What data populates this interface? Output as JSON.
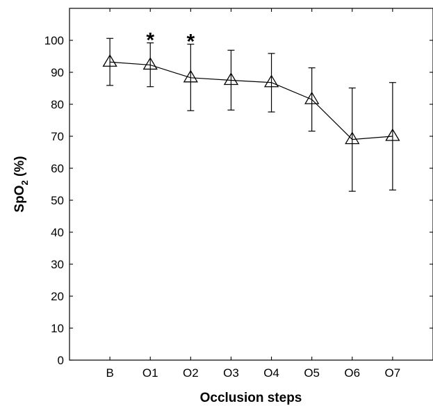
{
  "chart_data": {
    "type": "line",
    "xlabel": "Occlusion steps",
    "ylabel_main": "SpO",
    "ylabel_sub": "2",
    "ylabel_unit": " (%)",
    "categories": [
      "B",
      "O1",
      "O2",
      "O3",
      "O4",
      "O5",
      "O6",
      "O7"
    ],
    "series": [
      {
        "values": [
          93.2,
          92.3,
          88.3,
          87.5,
          86.8,
          81.5,
          69.0,
          70.0
        ],
        "error_upper": [
          100.6,
          99.2,
          98.8,
          96.9,
          95.9,
          91.4,
          85.1,
          86.8
        ],
        "error_lower": [
          85.9,
          85.5,
          78.0,
          78.2,
          77.6,
          71.6,
          52.8,
          53.2
        ],
        "marker": "open-triangle"
      }
    ],
    "significance_markers": [
      {
        "category": "O1",
        "symbol": "*"
      },
      {
        "category": "O2",
        "symbol": "*"
      }
    ],
    "yticks": [
      0,
      10,
      20,
      30,
      40,
      50,
      60,
      70,
      80,
      90,
      100
    ],
    "ylim": [
      0,
      110
    ],
    "xlim": [
      -1,
      8
    ],
    "grid": false,
    "legend": false
  }
}
